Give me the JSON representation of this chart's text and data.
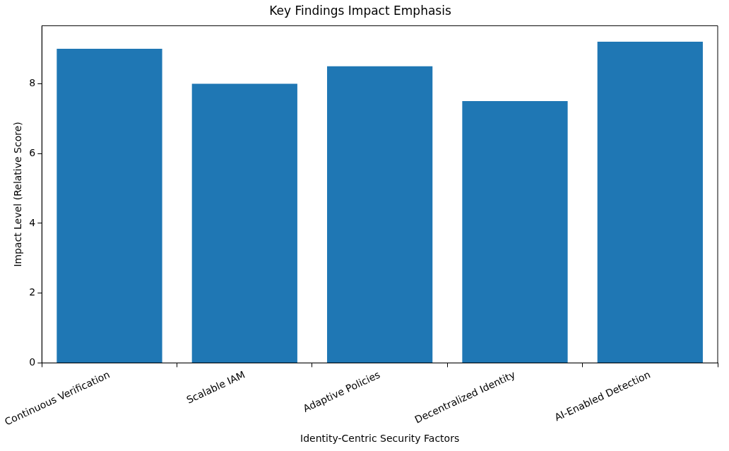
{
  "chart_data": {
    "type": "bar",
    "title": "Key Findings Impact Emphasis",
    "xlabel": "Identity-Centric Security Factors",
    "ylabel": "Impact Level (Relative Score)",
    "categories": [
      "Continuous Verification",
      "Scalable IAM",
      "Adaptive Policies",
      "Decentralized Identity",
      "AI-Enabled Detection"
    ],
    "values": [
      9,
      8,
      8.5,
      7.5,
      9.2
    ],
    "color": "#1f77b4",
    "ylim": [
      0,
      9.66
    ],
    "yticks": [
      0,
      2,
      4,
      6,
      8
    ]
  }
}
